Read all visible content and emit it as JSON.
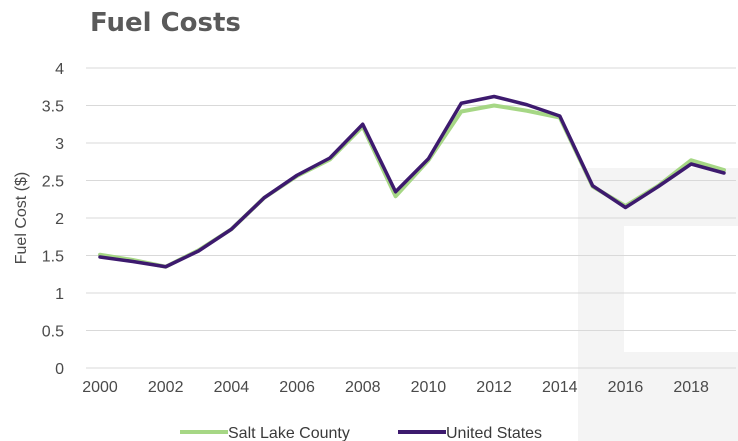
{
  "chart_data": {
    "type": "line",
    "title": "Fuel Costs",
    "ylabel": "Fuel Cost ($)",
    "xlabel": "",
    "ylim": [
      0,
      4
    ],
    "yticks": [
      0,
      0.5,
      1,
      1.5,
      2,
      2.5,
      3,
      3.5,
      4
    ],
    "xlim": [
      2000,
      2019
    ],
    "xticks": [
      2000,
      2002,
      2004,
      2006,
      2008,
      2010,
      2012,
      2014,
      2016,
      2018
    ],
    "grid": "horizontal",
    "legend_position": "bottom",
    "x": [
      2000,
      2001,
      2002,
      2003,
      2004,
      2005,
      2006,
      2007,
      2008,
      2009,
      2010,
      2011,
      2012,
      2013,
      2014,
      2015,
      2016,
      2017,
      2018,
      2019
    ],
    "series": [
      {
        "name": "Salt Lake County",
        "color": "#a6d785",
        "values": [
          1.51,
          1.44,
          1.35,
          1.57,
          1.85,
          2.27,
          2.56,
          2.78,
          3.22,
          2.29,
          2.77,
          3.42,
          3.5,
          3.43,
          3.34,
          2.42,
          2.16,
          2.43,
          2.77,
          2.64
        ]
      },
      {
        "name": "United States",
        "color": "#3d1a6e",
        "values": [
          1.48,
          1.42,
          1.35,
          1.56,
          1.85,
          2.27,
          2.57,
          2.8,
          3.25,
          2.35,
          2.79,
          3.53,
          3.62,
          3.51,
          3.36,
          2.43,
          2.14,
          2.42,
          2.72,
          2.6
        ]
      }
    ]
  }
}
